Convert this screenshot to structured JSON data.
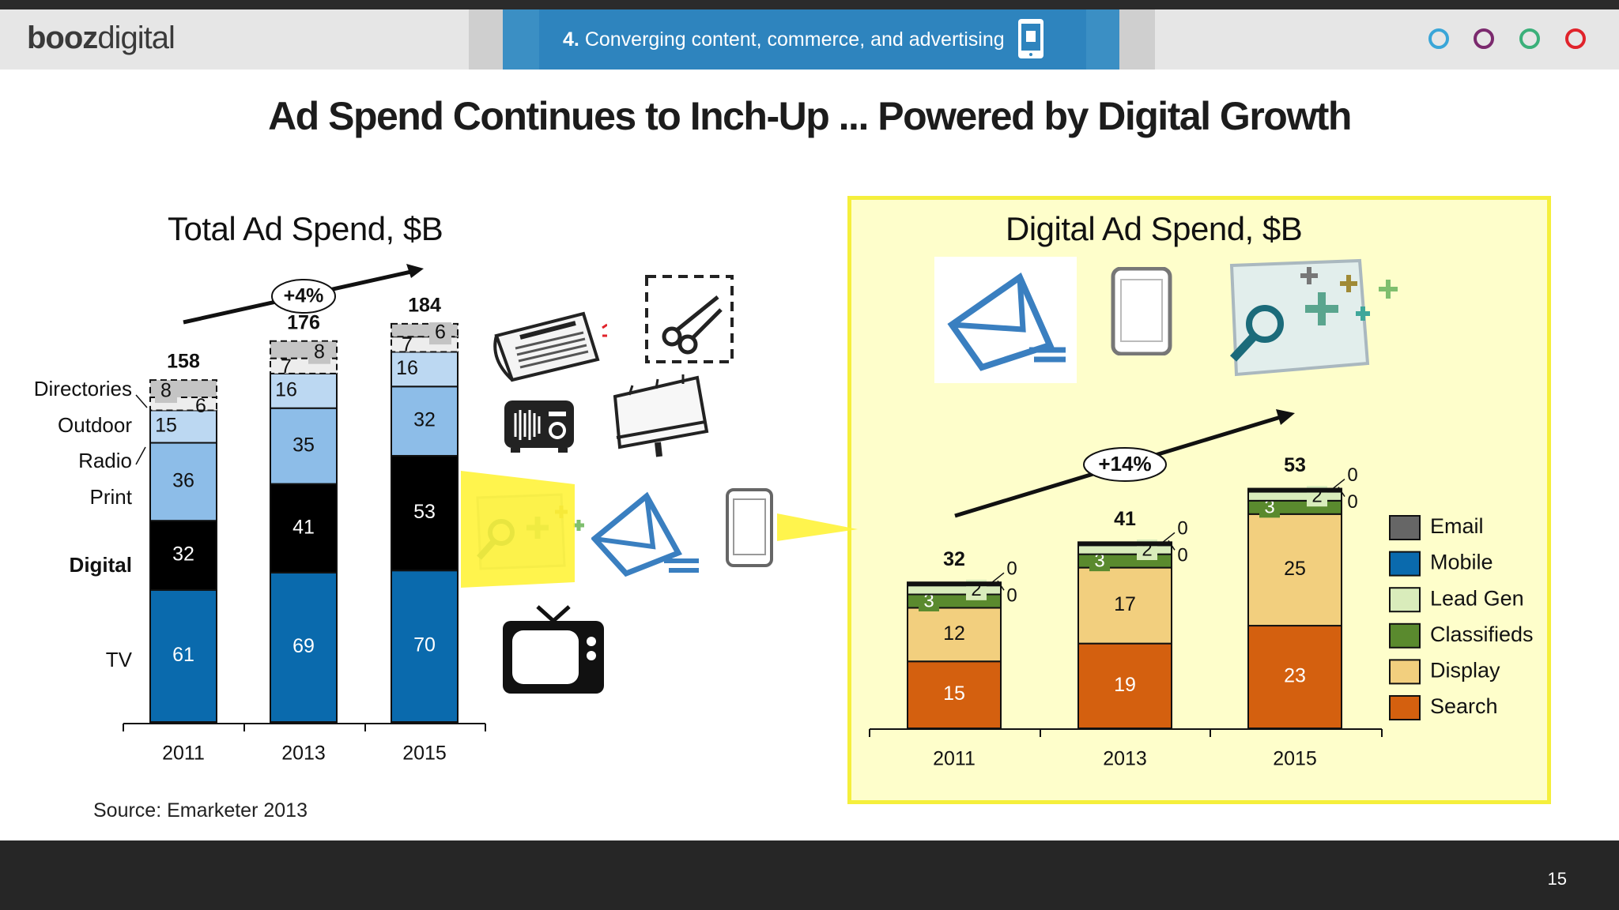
{
  "header": {
    "logo_bold": "booz",
    "logo_light": "digital",
    "section_number": "4.",
    "section_title": "Converging content, commerce, and advertising",
    "nav_colors": [
      "#3aa6d8",
      "#7b2a6e",
      "#3bb07a",
      "#e0232b"
    ]
  },
  "title": "Ad Spend Continues to Inch-Up ... Powered by Digital Growth",
  "source": "Source: Emarketer 2013",
  "page_number": "15",
  "icons": [
    "newspaper-icon",
    "scissors-coupon-icon",
    "radio-icon",
    "billboard-icon",
    "browser-search-icon",
    "email-icon",
    "mobile-phone-icon",
    "tv-icon"
  ],
  "chart_data": [
    {
      "type": "bar",
      "stacked": true,
      "title": "Total Ad Spend, $B",
      "categories": [
        "2011",
        "2013",
        "2015"
      ],
      "series": [
        {
          "name": "TV",
          "values": [
            61,
            69,
            70
          ],
          "color": "#0a6aad"
        },
        {
          "name": "Digital",
          "values": [
            32,
            41,
            53
          ],
          "color": "#000000"
        },
        {
          "name": "Print",
          "values": [
            36,
            35,
            32
          ],
          "color": "#8dbde8"
        },
        {
          "name": "Radio",
          "values": [
            15,
            16,
            16
          ],
          "color": "#bcd8f2"
        },
        {
          "name": "Outdoor",
          "values": [
            6,
            7,
            7
          ],
          "color": "#ededed"
        },
        {
          "name": "Directories",
          "values": [
            8,
            8,
            6
          ],
          "color": "#c4c4c4"
        }
      ],
      "series_value_labels": [
        [
          "61",
          "69",
          "70"
        ],
        [
          "32",
          "41",
          "53"
        ],
        [
          "36",
          "35",
          "32"
        ],
        [
          "15",
          "16",
          "16"
        ],
        [
          "6",
          "7",
          "7"
        ],
        [
          "8",
          "8",
          "6"
        ]
      ],
      "totals": [
        "158",
        "176",
        "184"
      ],
      "growth_label": "+4%",
      "ylim": [
        0,
        200
      ]
    },
    {
      "type": "bar",
      "stacked": true,
      "title": "Digital Ad Spend, $B",
      "categories": [
        "2011",
        "2013",
        "2015"
      ],
      "series": [
        {
          "name": "Search",
          "values": [
            15,
            19,
            23
          ],
          "color": "#d4600f"
        },
        {
          "name": "Display",
          "values": [
            12,
            17,
            25
          ],
          "color": "#f2cf7e"
        },
        {
          "name": "Classifieds",
          "values": [
            3,
            3,
            3
          ],
          "color": "#5a8a2e"
        },
        {
          "name": "Lead Gen",
          "values": [
            2,
            2,
            2
          ],
          "color": "#d9ecbb"
        },
        {
          "name": "Mobile",
          "values": [
            0,
            0,
            0
          ],
          "color": "#0a6aad"
        },
        {
          "name": "Email",
          "values": [
            0,
            0,
            0
          ],
          "color": "#666666"
        }
      ],
      "series_value_labels": [
        [
          "15",
          "19",
          "23"
        ],
        [
          "12",
          "17",
          "25"
        ],
        [
          "3",
          "3",
          "3"
        ],
        [
          "2",
          "2",
          "2"
        ],
        [
          "0",
          "0",
          "0"
        ],
        [
          "0",
          "0",
          "0"
        ]
      ],
      "totals": [
        "32",
        "41",
        "53"
      ],
      "growth_label": "+14%",
      "legend": {
        "placement": "right",
        "entries": [
          "Email",
          "Mobile",
          "Lead Gen",
          "Classifieds",
          "Display",
          "Search"
        ]
      },
      "ylim": [
        0,
        55
      ]
    }
  ]
}
